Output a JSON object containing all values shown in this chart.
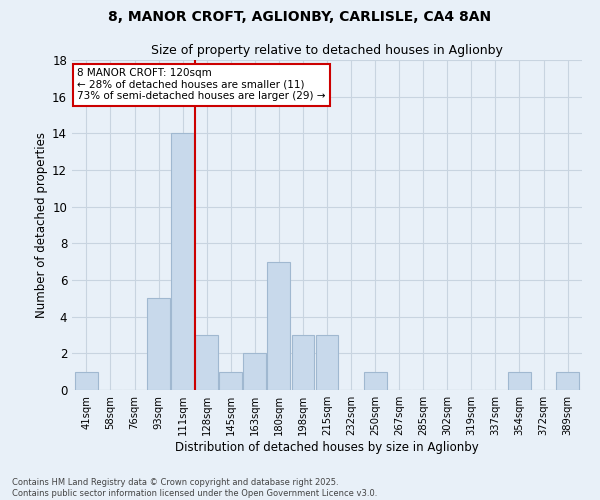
{
  "title_line1": "8, MANOR CROFT, AGLIONBY, CARLISLE, CA4 8AN",
  "title_line2": "Size of property relative to detached houses in Aglionby",
  "xlabel": "Distribution of detached houses by size in Aglionby",
  "ylabel": "Number of detached properties",
  "bar_labels": [
    "41sqm",
    "58sqm",
    "76sqm",
    "93sqm",
    "111sqm",
    "128sqm",
    "145sqm",
    "163sqm",
    "180sqm",
    "198sqm",
    "215sqm",
    "232sqm",
    "250sqm",
    "267sqm",
    "285sqm",
    "302sqm",
    "319sqm",
    "337sqm",
    "354sqm",
    "372sqm",
    "389sqm"
  ],
  "bar_values": [
    1,
    0,
    0,
    5,
    14,
    3,
    1,
    2,
    7,
    3,
    3,
    0,
    1,
    0,
    0,
    0,
    0,
    0,
    1,
    0,
    1
  ],
  "bar_color": "#c8d9eb",
  "bar_edge_color": "#a0b8d0",
  "vline_x": 4.5,
  "vline_color": "#cc0000",
  "ylim": [
    0,
    18
  ],
  "yticks": [
    0,
    2,
    4,
    6,
    8,
    10,
    12,
    14,
    16,
    18
  ],
  "grid_color": "#c8d4e0",
  "bg_color": "#e8f0f8",
  "annotation_text": "8 MANOR CROFT: 120sqm\n← 28% of detached houses are smaller (11)\n73% of semi-detached houses are larger (29) →",
  "annotation_box_color": "#ffffff",
  "annotation_edge_color": "#cc0000",
  "footer_text": "Contains HM Land Registry data © Crown copyright and database right 2025.\nContains public sector information licensed under the Open Government Licence v3.0.",
  "n_bars": 21
}
